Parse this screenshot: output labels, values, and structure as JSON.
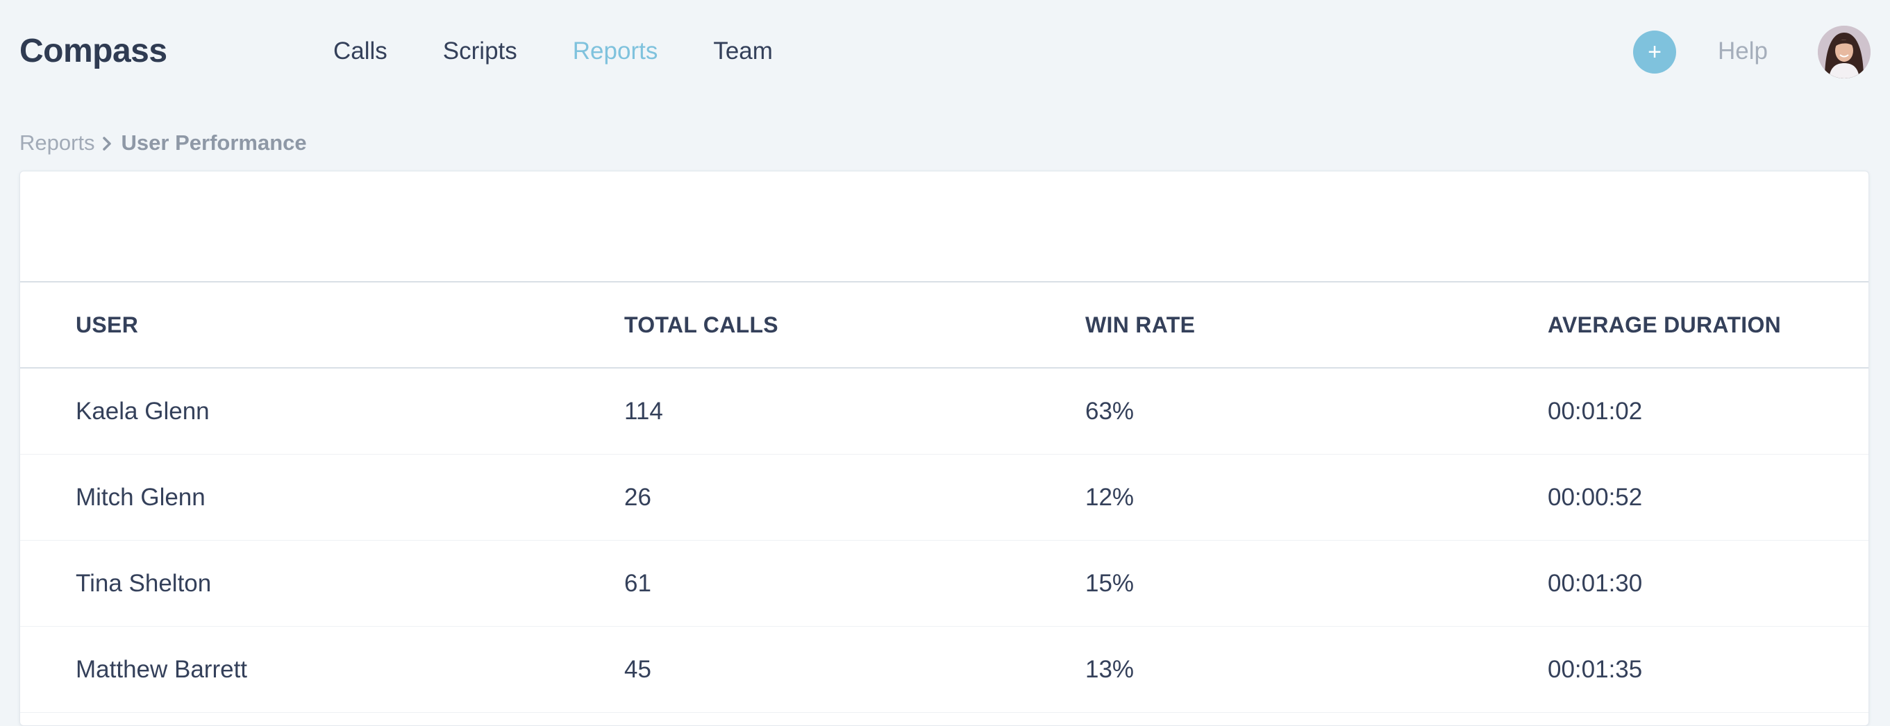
{
  "header": {
    "brand": "Compass",
    "nav": [
      {
        "label": "Calls",
        "active": false
      },
      {
        "label": "Scripts",
        "active": false
      },
      {
        "label": "Reports",
        "active": true
      },
      {
        "label": "Team",
        "active": false
      }
    ],
    "add_label": "+",
    "help_label": "Help",
    "accent_color": "#7fc2dd"
  },
  "breadcrumb": {
    "parent": "Reports",
    "current": "User Performance"
  },
  "table": {
    "columns": [
      "USER",
      "TOTAL CALLS",
      "WIN RATE",
      "AVERAGE DURATION"
    ],
    "rows": [
      [
        "Kaela Glenn",
        "114",
        "63%",
        "00:01:02"
      ],
      [
        "Mitch Glenn",
        "26",
        "12%",
        "00:00:52"
      ],
      [
        "Tina Shelton",
        "61",
        "15%",
        "00:01:30"
      ],
      [
        "Matthew Barrett",
        "45",
        "13%",
        "00:01:35"
      ]
    ]
  }
}
